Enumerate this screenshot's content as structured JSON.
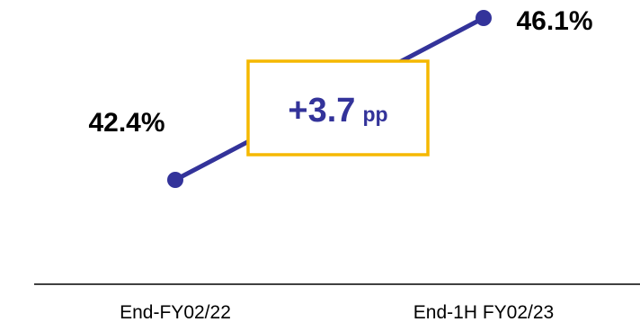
{
  "chart_data": {
    "type": "line",
    "categories": [
      "End-FY02/22",
      "End-1H FY02/23"
    ],
    "series": [
      {
        "values": [
          42.4,
          46.1
        ],
        "value_labels": [
          "42.4%",
          "46.1%"
        ]
      }
    ],
    "annotation": {
      "value": "+3.7",
      "unit": "pp"
    },
    "grid": false,
    "colors": {
      "line": "#33339a",
      "annotation_box": "#f5b800",
      "annotation_text": "#33339a"
    }
  }
}
